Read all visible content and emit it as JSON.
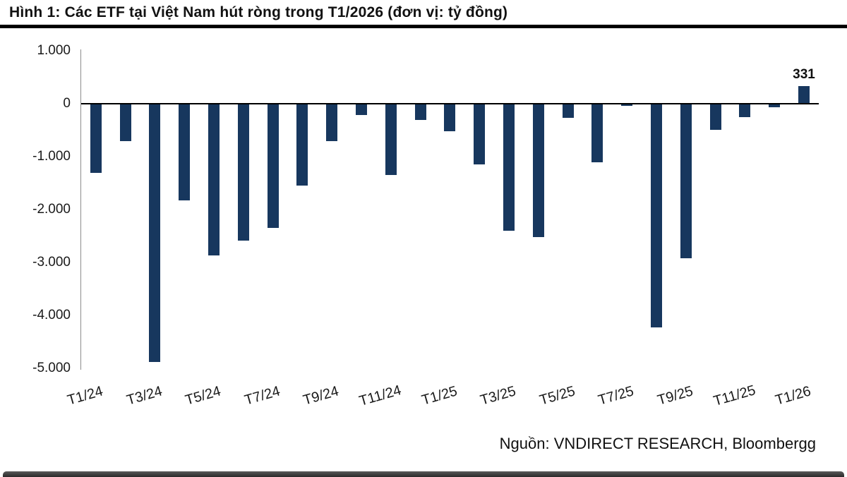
{
  "figure": {
    "title": "Hình 1: Các ETF tại Việt Nam hút ròng trong T1/2026 (đơn vị: tỷ đồng)",
    "source": "Nguồn: VNDIRECT RESEARCH, Bloombergg"
  },
  "chart_data": {
    "type": "bar",
    "title": "Hình 1: Các ETF tại Việt Nam hút ròng trong T1/2026 (đơn vị: tỷ đồng)",
    "unit": "tỷ đồng",
    "months": [
      "T1/24",
      "T2/24",
      "T3/24",
      "T4/24",
      "T5/24",
      "T6/24",
      "T7/24",
      "T8/24",
      "T9/24",
      "T10/24",
      "T11/24",
      "T12/24",
      "T1/25",
      "T2/25",
      "T3/25",
      "T4/25",
      "T5/25",
      "T6/25",
      "T7/25",
      "T8/25",
      "T9/25",
      "T10/25",
      "T11/25",
      "T12/25",
      "T1/26"
    ],
    "values": [
      -1300,
      -700,
      -4880,
      -1830,
      -2860,
      -2580,
      -2350,
      -1540,
      -710,
      -210,
      -1350,
      -310,
      -520,
      -1150,
      -2400,
      -2520,
      -270,
      -1110,
      -40,
      -4230,
      -2920,
      -490,
      -250,
      -70,
      331
    ],
    "x_tick_labels": [
      "T1/24",
      "T3/24",
      "T5/24",
      "T7/24",
      "T9/24",
      "T11/24",
      "T1/25",
      "T3/25",
      "T5/25",
      "T7/25",
      "T9/25",
      "T11/25",
      "T1/26"
    ],
    "x_tick_indices": [
      0,
      2,
      4,
      6,
      8,
      10,
      12,
      14,
      16,
      18,
      20,
      22,
      24
    ],
    "y_ticks": [
      "1.000",
      "0",
      "-1.000",
      "-2.000",
      "-3.000",
      "-4.000",
      "-5.000"
    ],
    "y_tick_values": [
      1000,
      0,
      -1000,
      -2000,
      -3000,
      -4000,
      -5000
    ],
    "ylim": [
      -5000,
      1000
    ],
    "bar_color": "#17375E",
    "data_labels": [
      {
        "index": 24,
        "text": "331"
      }
    ],
    "legend": "none",
    "grid": false
  }
}
